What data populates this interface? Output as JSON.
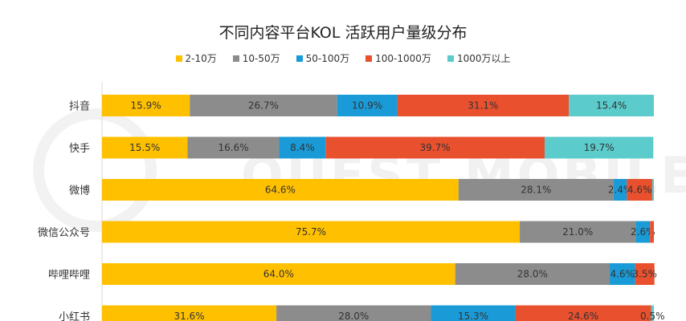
{
  "chart_data": {
    "type": "bar",
    "orientation": "horizontal",
    "stacked": true,
    "title": "不同内容平台KOL 活跃用户量级分布",
    "legend_position": "top",
    "xlim": [
      0,
      100
    ],
    "grid": false,
    "categories": [
      "抖音",
      "快手",
      "微博",
      "微信公众号",
      "哔哩哔哩",
      "小红书"
    ],
    "series": [
      {
        "name": "2-10万",
        "color": "#FFC000",
        "values": [
          15.9,
          15.5,
          64.6,
          75.7,
          64.0,
          31.6
        ],
        "labels": [
          "15.9%",
          "15.5%",
          "64.6%",
          "75.7%",
          "64.0%",
          "31.6%"
        ]
      },
      {
        "name": "10-50万",
        "color": "#8C8C8C",
        "values": [
          26.7,
          16.6,
          28.1,
          21.0,
          28.0,
          28.0
        ],
        "labels": [
          "26.7%",
          "16.6%",
          "28.1%",
          "21.0%",
          "28.0%",
          "28.0%"
        ]
      },
      {
        "name": "50-100万",
        "color": "#1A9BD7",
        "values": [
          10.9,
          8.4,
          2.4,
          2.6,
          4.6,
          15.3
        ],
        "labels": [
          "10.9%",
          "8.4%",
          "2.4%",
          "2.6%",
          "4.6%",
          "15.3%"
        ]
      },
      {
        "name": "100-1000万",
        "color": "#E8502E",
        "values": [
          31.1,
          39.7,
          4.6,
          0.7,
          3.5,
          24.6
        ],
        "labels": [
          "31.1%",
          "39.7%",
          "4.6%",
          "",
          "3.5%",
          "24.6%"
        ]
      },
      {
        "name": "1000万以上",
        "color": "#5BCBCB",
        "values": [
          15.4,
          19.7,
          0.3,
          0.0,
          0.0,
          0.5
        ],
        "labels": [
          "15.4%",
          "19.7%",
          "",
          "",
          "",
          "0.5%"
        ]
      }
    ]
  },
  "watermark": {
    "text": "QUEST MOBILE"
  }
}
